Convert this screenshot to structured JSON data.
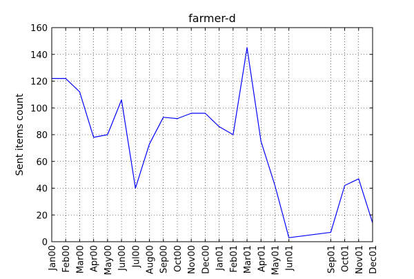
{
  "chart_data": {
    "type": "line",
    "title": "farmer-d",
    "xlabel": "",
    "ylabel": "Sent items count",
    "x_tick_labels": [
      "Jan00",
      "Feb00",
      "Mar00",
      "Apr00",
      "May00",
      "Jun00",
      "Jul00",
      "Aug00",
      "Sep00",
      "Oct00",
      "Nov00",
      "Dec00",
      "Jan01",
      "Feb01",
      "Mar01",
      "Apr01",
      "May01",
      "Jun01",
      "Sep01",
      "Oct01",
      "Nov01",
      "Dec01"
    ],
    "x_months": [
      0,
      1,
      2,
      3,
      4,
      5,
      6,
      7,
      8,
      9,
      10,
      11,
      12,
      13,
      14,
      15,
      16,
      17,
      20,
      21,
      22,
      23
    ],
    "xlim": [
      0,
      23
    ],
    "y_ticks": [
      0,
      20,
      40,
      60,
      80,
      100,
      120,
      140,
      160
    ],
    "ylim": [
      0,
      160
    ],
    "grid": true,
    "series": [
      {
        "color": "#0000ff",
        "x": [
          0,
          1,
          2,
          3,
          4,
          5,
          6,
          7,
          8,
          9,
          10,
          11,
          12,
          13,
          14,
          15,
          16,
          17,
          20,
          21,
          22,
          23
        ],
        "values": [
          122,
          122,
          112,
          78,
          80,
          106,
          40,
          73,
          93,
          92,
          96,
          96,
          86,
          80,
          145,
          75,
          42,
          3,
          7,
          42,
          47,
          14
        ]
      }
    ]
  }
}
